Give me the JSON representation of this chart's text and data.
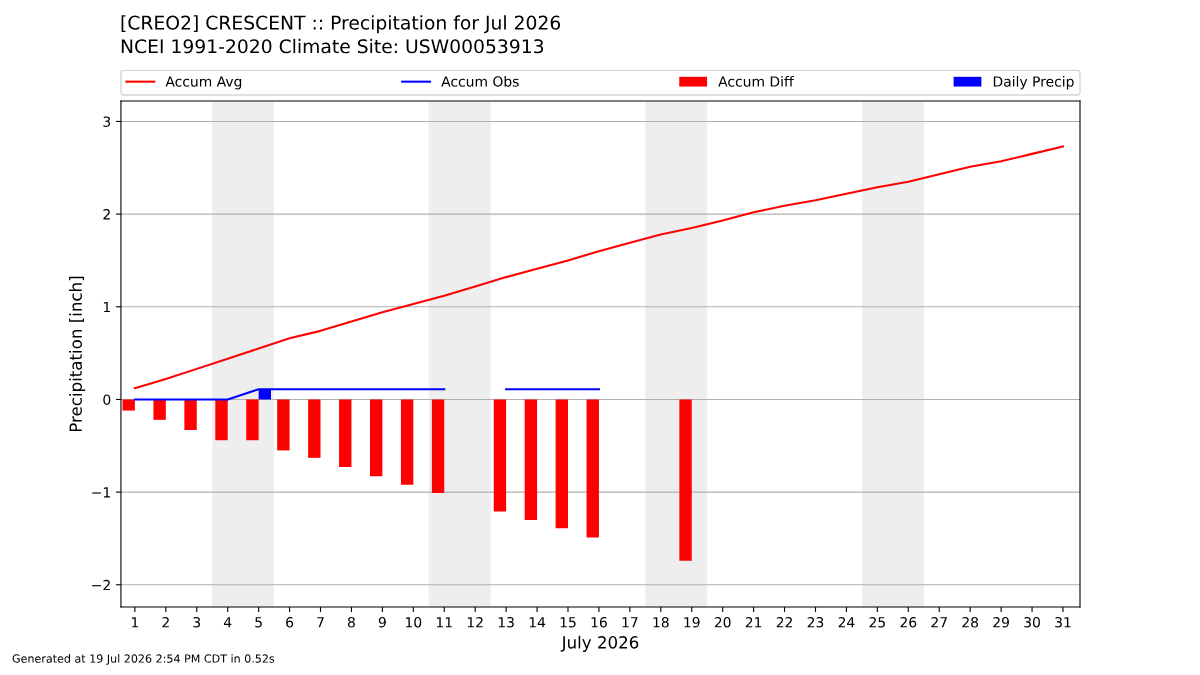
{
  "chart_data": {
    "type": "bar",
    "title": "[CREO2] CRESCENT :: Precipitation for Jul 2026",
    "subtitle": "NCEI 1991-2020 Climate Site: USW00053913",
    "xlabel": "July 2026",
    "ylabel": "Precipitation [inch]",
    "annotations": [
      "Generated at 19 Jul 2026 2:54 PM CDT in 0.52s"
    ],
    "x": [
      1,
      2,
      3,
      4,
      5,
      6,
      7,
      8,
      9,
      10,
      11,
      12,
      13,
      14,
      15,
      16,
      17,
      18,
      19,
      20,
      21,
      22,
      23,
      24,
      25,
      26,
      27,
      28,
      29,
      30,
      31
    ],
    "series": [
      {
        "name": "Accum Avg",
        "type": "line",
        "color": "#ff0000",
        "values": [
          0.12,
          0.22,
          0.33,
          0.44,
          0.55,
          0.66,
          0.74,
          0.84,
          0.94,
          1.03,
          1.12,
          1.22,
          1.32,
          1.41,
          1.5,
          1.6,
          1.69,
          1.78,
          1.85,
          1.93,
          2.02,
          2.09,
          2.15,
          2.22,
          2.29,
          2.35,
          2.43,
          2.51,
          2.57,
          2.65,
          2.73
        ]
      },
      {
        "name": "Accum Obs",
        "type": "line",
        "color": "#0000ff",
        "values": [
          0,
          0,
          0,
          0,
          0.11,
          0.11,
          0.11,
          0.11,
          0.11,
          0.11,
          0.11,
          null,
          0.11,
          0.11,
          0.11,
          0.11,
          null,
          null,
          null,
          null,
          null,
          null,
          null,
          null,
          null,
          null,
          null,
          null,
          null,
          null,
          null
        ]
      },
      {
        "name": "Accum Diff",
        "color": "#ff0000",
        "values": [
          -0.12,
          -0.22,
          -0.33,
          -0.44,
          -0.44,
          -0.55,
          -0.63,
          -0.73,
          -0.83,
          -0.92,
          -1.01,
          null,
          -1.21,
          -1.3,
          -1.39,
          -1.49,
          null,
          null,
          -1.74,
          null,
          null,
          null,
          null,
          null,
          null,
          null,
          null,
          null,
          null,
          null,
          null
        ]
      },
      {
        "name": "Daily Precip",
        "color": "#0000ff",
        "values": [
          null,
          null,
          null,
          null,
          0.11,
          null,
          null,
          null,
          null,
          null,
          null,
          null,
          null,
          null,
          null,
          null,
          null,
          null,
          null,
          null,
          null,
          null,
          null,
          null,
          null,
          null,
          null,
          null,
          null,
          null,
          null
        ]
      }
    ],
    "bands": [
      {
        "axis": "x",
        "from": 3.5,
        "to": 5.5,
        "color": "#eeeeee"
      },
      {
        "axis": "x",
        "from": 10.5,
        "to": 12.5,
        "color": "#eeeeee"
      },
      {
        "axis": "x",
        "from": 17.5,
        "to": 19.5,
        "color": "#eeeeee"
      },
      {
        "axis": "x",
        "from": 24.5,
        "to": 26.5,
        "color": "#eeeeee"
      }
    ],
    "xlim": [
      0.55,
      31.55
    ],
    "xticks": [
      1,
      2,
      3,
      4,
      5,
      6,
      7,
      8,
      9,
      10,
      11,
      12,
      13,
      14,
      15,
      16,
      17,
      18,
      19,
      20,
      21,
      22,
      23,
      24,
      25,
      26,
      27,
      28,
      29,
      30,
      31
    ],
    "ylim": [
      -2.24,
      3.22
    ],
    "yticks": [
      -2,
      -1,
      0,
      1,
      2,
      3
    ],
    "grid": "y",
    "legend": "top",
    "line_style": "solid"
  }
}
